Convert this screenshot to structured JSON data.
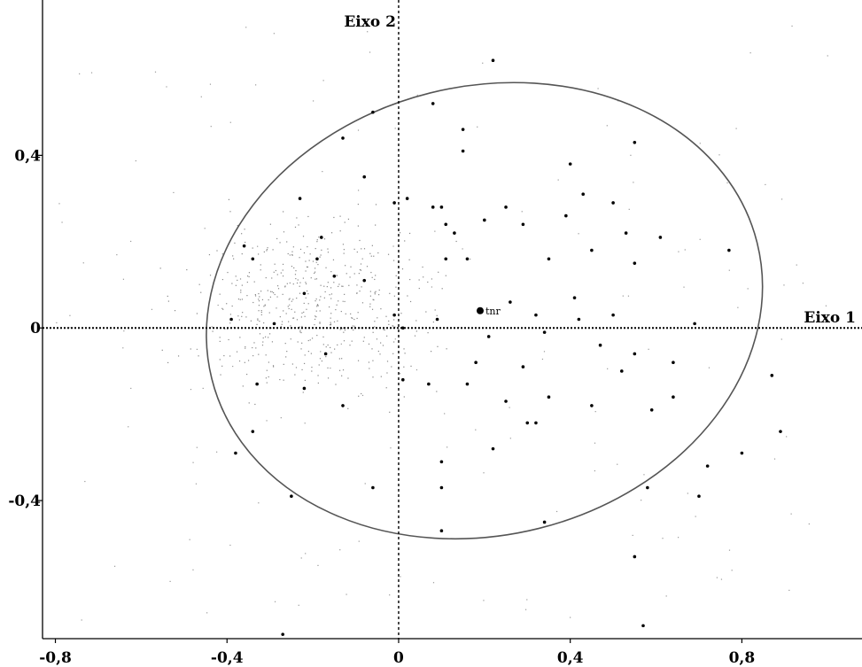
{
  "chart_data": {
    "type": "scatter",
    "title": "",
    "xlabel": "Eixo 1",
    "ylabel": "Eixo 2",
    "xlim": [
      -0.83,
      1.08
    ],
    "ylim": [
      -0.72,
      0.76
    ],
    "xticks": [
      -0.8,
      -0.4,
      0,
      0.4,
      0.8
    ],
    "xtick_labels": [
      "-0,8",
      "-0,4",
      "0",
      "0,4",
      "0,8"
    ],
    "yticks": [
      0.4,
      0,
      -0.4
    ],
    "ytick_labels": [
      "0,4",
      "0",
      "-0,4"
    ],
    "grid": false,
    "ellipse": {
      "center": [
        0.2,
        0.04
      ],
      "rx": 0.655,
      "ry": 0.52
    },
    "highlight": {
      "name": "tnr",
      "x": 0.19,
      "y": 0.04
    },
    "major_points": [
      [
        0.22,
        0.62
      ],
      [
        0.08,
        0.52
      ],
      [
        -0.06,
        0.5
      ],
      [
        0.15,
        0.46
      ],
      [
        -0.13,
        0.44
      ],
      [
        0.55,
        0.43
      ],
      [
        0.15,
        0.41
      ],
      [
        0.4,
        0.38
      ],
      [
        -0.08,
        0.35
      ],
      [
        0.43,
        0.31
      ],
      [
        0.02,
        0.3
      ],
      [
        -0.23,
        0.3
      ],
      [
        0.5,
        0.29
      ],
      [
        -0.01,
        0.29
      ],
      [
        0.08,
        0.28
      ],
      [
        0.1,
        0.28
      ],
      [
        0.25,
        0.28
      ],
      [
        0.39,
        0.26
      ],
      [
        0.2,
        0.25
      ],
      [
        0.11,
        0.24
      ],
      [
        0.29,
        0.24
      ],
      [
        0.13,
        0.22
      ],
      [
        0.53,
        0.22
      ],
      [
        -0.18,
        0.21
      ],
      [
        0.61,
        0.21
      ],
      [
        -0.36,
        0.19
      ],
      [
        0.45,
        0.18
      ],
      [
        0.77,
        0.18
      ],
      [
        -0.34,
        0.16
      ],
      [
        0.16,
        0.16
      ],
      [
        0.11,
        0.16
      ],
      [
        0.35,
        0.16
      ],
      [
        -0.19,
        0.16
      ],
      [
        0.55,
        0.15
      ],
      [
        -0.08,
        0.11
      ],
      [
        -0.15,
        0.12
      ],
      [
        -0.22,
        0.08
      ],
      [
        0.41,
        0.07
      ],
      [
        0.26,
        0.06
      ],
      [
        0.32,
        0.03
      ],
      [
        0.5,
        0.03
      ],
      [
        -0.01,
        0.03
      ],
      [
        0.42,
        0.02
      ],
      [
        0.09,
        0.02
      ],
      [
        -0.29,
        0.01
      ],
      [
        0.69,
        0.01
      ],
      [
        -0.39,
        0.02
      ],
      [
        0.47,
        -0.04
      ],
      [
        0.34,
        -0.01
      ],
      [
        0.21,
        -0.02
      ],
      [
        0.52,
        -0.1
      ],
      [
        -0.17,
        -0.06
      ],
      [
        0.55,
        -0.06
      ],
      [
        0.18,
        -0.08
      ],
      [
        0.64,
        -0.08
      ],
      [
        0.29,
        -0.09
      ],
      [
        -0.33,
        -0.13
      ],
      [
        0.01,
        -0.12
      ],
      [
        0.16,
        -0.13
      ],
      [
        0.07,
        -0.13
      ],
      [
        0.87,
        -0.11
      ],
      [
        -0.22,
        -0.14
      ],
      [
        0.35,
        -0.16
      ],
      [
        0.25,
        -0.17
      ],
      [
        0.64,
        -0.16
      ],
      [
        -0.13,
        -0.18
      ],
      [
        0.45,
        -0.18
      ],
      [
        0.59,
        -0.19
      ],
      [
        0.3,
        -0.22
      ],
      [
        0.32,
        -0.22
      ],
      [
        0.89,
        -0.24
      ],
      [
        -0.34,
        -0.24
      ],
      [
        0.22,
        -0.28
      ],
      [
        0.8,
        -0.29
      ],
      [
        -0.38,
        -0.29
      ],
      [
        0.1,
        -0.31
      ],
      [
        0.72,
        -0.32
      ],
      [
        -0.06,
        -0.37
      ],
      [
        0.1,
        -0.37
      ],
      [
        0.58,
        -0.37
      ],
      [
        -0.25,
        -0.39
      ],
      [
        0.7,
        -0.39
      ],
      [
        0.34,
        -0.45
      ],
      [
        0.1,
        -0.47
      ],
      [
        0.55,
        -0.53
      ],
      [
        0.57,
        -0.69
      ],
      [
        -0.27,
        -0.71
      ],
      [
        0.01,
        0.0
      ]
    ]
  }
}
